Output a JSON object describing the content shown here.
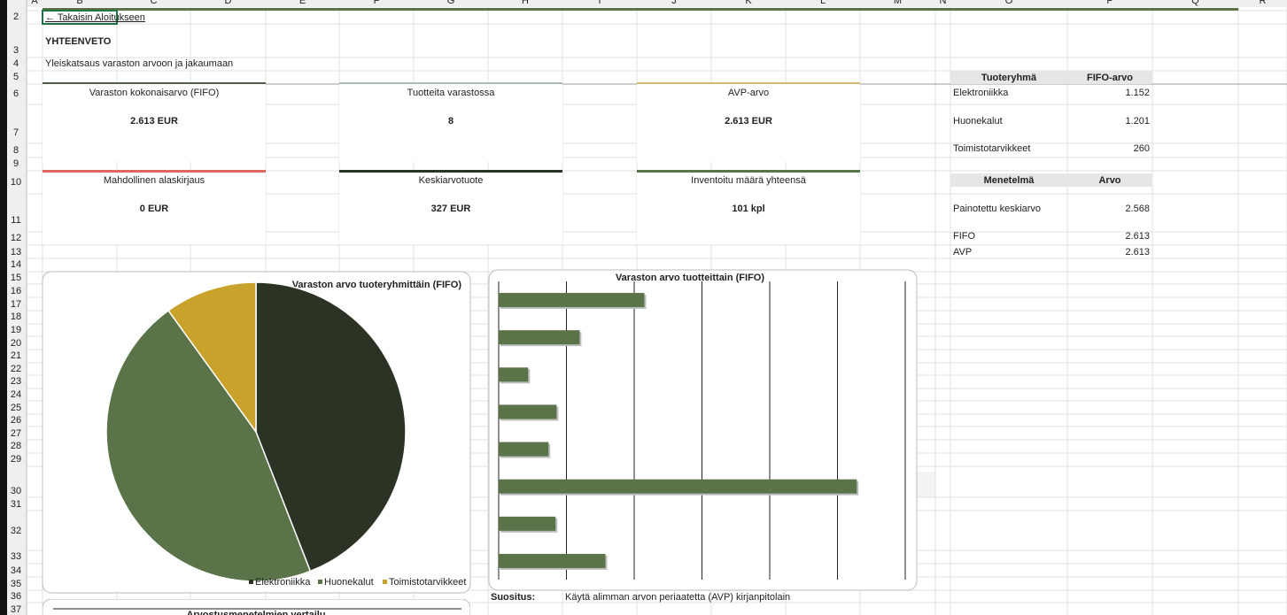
{
  "sheet": {
    "columns": [
      "A",
      "B",
      "C",
      "D",
      "E",
      "F",
      "G",
      "H",
      "I",
      "J",
      "K",
      "L",
      "M",
      "N",
      "O",
      "P",
      "Q",
      "R"
    ],
    "rows": [
      2,
      3,
      4,
      5,
      6,
      7,
      8,
      9,
      10,
      11,
      12,
      13,
      14,
      15,
      16,
      17,
      18,
      19,
      20,
      21,
      22,
      23,
      24,
      25,
      26,
      27,
      28,
      29,
      30,
      31,
      32,
      33,
      34,
      35,
      36,
      37
    ]
  },
  "header": {
    "back_link": "← Takaisin Aloitukseen",
    "title": "YHTEENVETO",
    "subtitle": "Yleiskatsaus varaston arvoon ja jakaumaan"
  },
  "kpis": [
    {
      "label": "Varaston kokonaisarvo (FIFO)",
      "value": "2.613 EUR",
      "color": "#4f5e44"
    },
    {
      "label": "Tuotteita varastossa",
      "value": "8",
      "color": "#a9bdbd"
    },
    {
      "label": "AVP-arvo",
      "value": "2.613 EUR",
      "color": "#d8b86c"
    },
    {
      "label": "Mahdollinen alaskirjaus",
      "value": "0 EUR",
      "color": "#e0675f"
    },
    {
      "label": "Keskiarvotuote",
      "value": "327 EUR",
      "color": "#2b3524"
    },
    {
      "label": "Inventoitu määrä yhteensä",
      "value": "101 kpl",
      "color": "#5a7347"
    }
  ],
  "tables": [
    {
      "header": [
        "Tuoteryhmä",
        "FIFO-arvo"
      ],
      "rows": [
        [
          "Elektroniikka",
          "1.152"
        ],
        [
          "Huonekalut",
          "1.201"
        ],
        [
          "Toimistotarvikkeet",
          "260"
        ]
      ]
    },
    {
      "header": [
        "Menetelmä",
        "Arvo"
      ],
      "rows": [
        [
          "Painotettu keskiarvo",
          "2.568"
        ],
        [
          "FIFO",
          "2.613"
        ],
        [
          "AVP",
          "2.613"
        ]
      ]
    }
  ],
  "chart_data": [
    {
      "type": "pie",
      "title": "Varaston arvo tuoteryhmittäin (FIFO)",
      "categories": [
        "Elektroniikka",
        "Huonekalut",
        "Toimistotarvikkeet"
      ],
      "values": [
        1152,
        1201,
        260
      ],
      "colors": [
        "#2b3424",
        "#5b7349",
        "#c9a22b"
      ],
      "legend": "bottom"
    },
    {
      "type": "bar",
      "orientation": "horizontal",
      "title": "Varaston arvo tuotteittain (FIFO)",
      "values": [
        430,
        239,
        87,
        171,
        147,
        1057,
        168,
        315
      ],
      "color": "#5b7349",
      "xlim": [
        0,
        1200
      ],
      "xticks": [
        0,
        200,
        400,
        600,
        800,
        1000,
        1200
      ],
      "grid": true
    }
  ],
  "recommendation": {
    "label": "Suositus:",
    "text": "Käytä alimman arvon periaatetta (AVP) kirjanpitolain"
  },
  "next_chart_title": "Arvostusmenetelmien vertailu"
}
